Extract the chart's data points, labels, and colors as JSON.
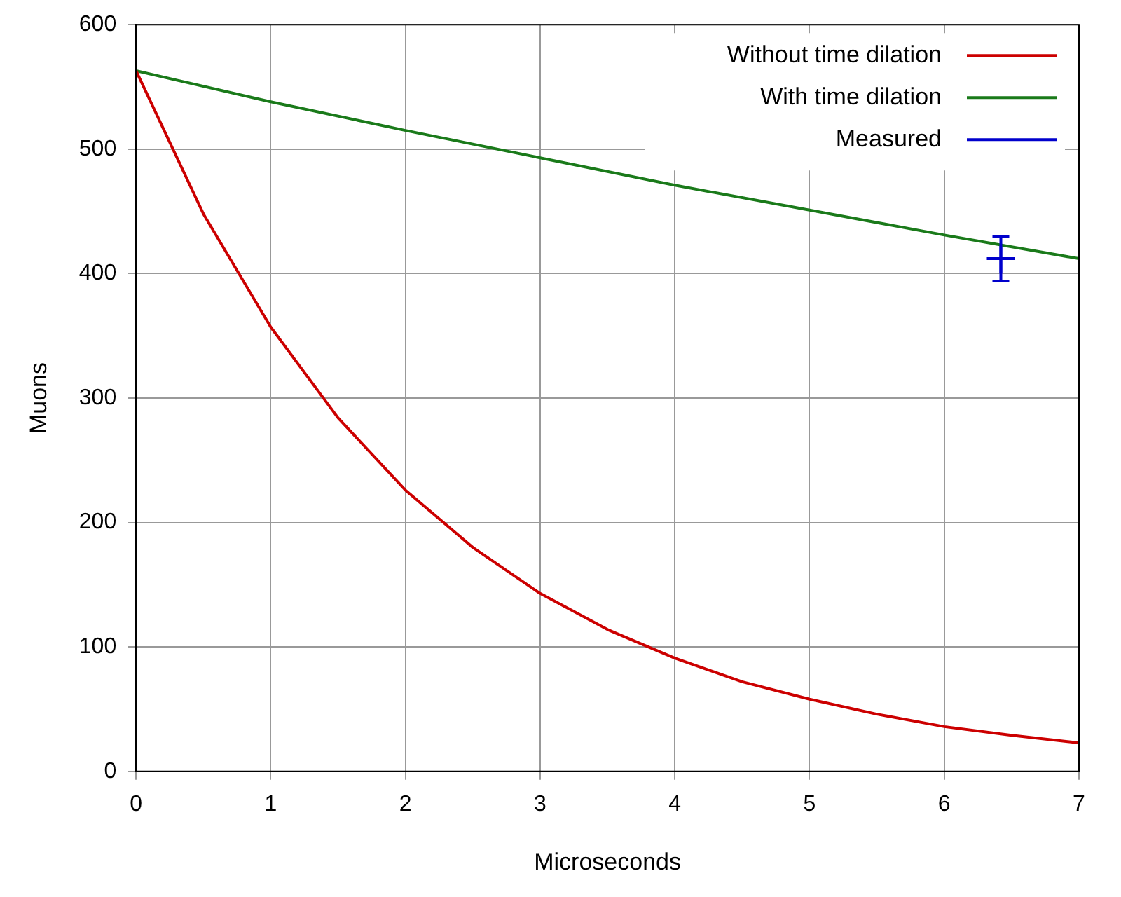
{
  "chart_data": {
    "type": "line",
    "xlabel": "Microseconds",
    "ylabel": "Muons",
    "xlim": [
      0,
      7
    ],
    "ylim": [
      0,
      600
    ],
    "xticks": [
      0,
      1,
      2,
      3,
      4,
      5,
      6,
      7
    ],
    "yticks": [
      0,
      100,
      200,
      300,
      400,
      500,
      600
    ],
    "grid": true,
    "legend": "top right",
    "marker": "none",
    "line_style": "solid",
    "series": [
      {
        "name": "Without time dilation",
        "color": "#cc0000",
        "x": [
          0,
          0.5,
          1,
          1.5,
          2,
          2.5,
          3,
          3.5,
          4,
          4.5,
          5,
          5.5,
          6,
          6.5,
          7
        ],
        "values": [
          563,
          448,
          357,
          284,
          226,
          180,
          143,
          114,
          91,
          72,
          58,
          46,
          36,
          29,
          23
        ]
      },
      {
        "name": "With time dilation",
        "color": "#1a7a1a",
        "x": [
          0,
          1,
          2,
          3,
          4,
          5,
          6,
          7
        ],
        "values": [
          563,
          538,
          515,
          493,
          471,
          451,
          431,
          412
        ]
      },
      {
        "name": "Measured",
        "type": "scatter",
        "marker": "cross",
        "color": "#0000cc",
        "x": [
          6.42
        ],
        "values": [
          412
        ],
        "errors": [
          18
        ]
      }
    ]
  }
}
